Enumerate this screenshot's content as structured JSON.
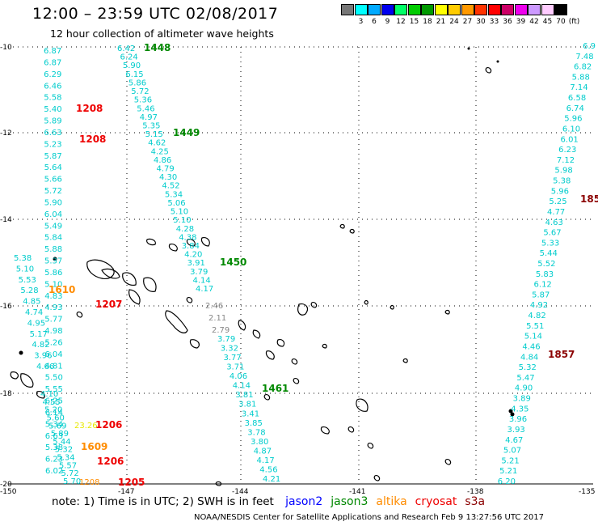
{
  "header": {
    "title": "12:00 – 23:59 UTC 02/08/2017",
    "subtitle": "12 hour collection of altimeter wave heights"
  },
  "colorbar": {
    "unit": "(ft)",
    "items": [
      {
        "label": "",
        "color": "#777777"
      },
      {
        "label": "3",
        "color": "#00ffff"
      },
      {
        "label": "6",
        "color": "#00aaff"
      },
      {
        "label": "9",
        "color": "#0000ee"
      },
      {
        "label": "12",
        "color": "#00ff66"
      },
      {
        "label": "15",
        "color": "#00cc00"
      },
      {
        "label": "18",
        "color": "#009900"
      },
      {
        "label": "21",
        "color": "#ffff00"
      },
      {
        "label": "24",
        "color": "#ffcc00"
      },
      {
        "label": "27",
        "color": "#ff9900"
      },
      {
        "label": "30",
        "color": "#ff3300"
      },
      {
        "label": "33",
        "color": "#ff0000"
      },
      {
        "label": "36",
        "color": "#cc0066"
      },
      {
        "label": "39",
        "color": "#ee00ee"
      },
      {
        "label": "42",
        "color": "#cc99ff"
      },
      {
        "label": "45",
        "color": "#ffccff"
      },
      {
        "label": "70",
        "color": "#000000"
      }
    ]
  },
  "map_axes": {
    "lat_labels": [
      "-10",
      "-12",
      "-14",
      "-16",
      "-18",
      "-20"
    ],
    "lon_labels": [
      "-150",
      "-147",
      "-144",
      "-141",
      "-138",
      "-135"
    ]
  },
  "wave_tracks": [
    {
      "color": "#00cccc",
      "values": [
        "6.87",
        "6.87",
        "6.29",
        "6.46",
        "5.58",
        "5.40",
        "5.89",
        "6.63",
        "5.23",
        "5.87",
        "5.64",
        "5.66",
        "5.72",
        "5.90",
        "6.04",
        "5.49",
        "5.84",
        "5.88",
        "5.37",
        "5.86",
        "5.10",
        "4.83",
        "4.93",
        "5.77",
        "4.98",
        "5.26",
        "6.04",
        "4.81",
        "5.50",
        "5.55",
        "6.25",
        "6.14",
        "5.34",
        "6.63",
        "5.38",
        "6.23",
        "6.02"
      ]
    },
    {
      "color": "#00cccc",
      "values": [
        "6.42",
        "6.24",
        "5.90",
        "6.15",
        "5.86",
        "5.72",
        "5.36",
        "5.46",
        "4.97",
        "5.35",
        "5.15",
        "4.62",
        "4.25",
        "4.86",
        "4.79",
        "4.30",
        "4.52",
        "5.34",
        "5.06",
        "5.10",
        "5.10",
        "4.28",
        "4.38",
        "3.84",
        "4.20",
        "3.91",
        "3.79",
        "4.14",
        "4.17"
      ]
    },
    {
      "color": "#00cccc",
      "values": [
        "3.79",
        "3.32",
        "3.77",
        "3.71",
        "4.06",
        "4.14",
        "3.81",
        "3.81",
        "3.41",
        "3.85",
        "3.78",
        "3.80",
        "4.87",
        "4.17",
        "4.56",
        "4.21"
      ]
    },
    {
      "color": "#00cccc",
      "values": [
        "5.38",
        "5.10",
        "5.53",
        "5.28",
        "4.85",
        "4.74",
        "4.95",
        "5.17",
        "4.82",
        "3.96",
        "4.66"
      ]
    },
    {
      "color": "#00cccc",
      "values": [
        "4.10",
        "4.55",
        "5.20",
        "5.60",
        "5.69",
        "5.89",
        "5.44",
        "5.32",
        "5.34",
        "5.57",
        "5.72",
        "5.70"
      ]
    },
    {
      "color": "#00cccc",
      "values": [
        "6.9",
        "7.48",
        "6.82",
        "5.88",
        "7.14",
        "6.58",
        "6.74",
        "5.96",
        "6.10",
        "6.01",
        "6.23",
        "7.12",
        "5.98",
        "5.38",
        "5.96",
        "5.25",
        "4.77",
        "4.63",
        "5.67",
        "5.33",
        "5.44",
        "5.52",
        "5.83",
        "6.12",
        "5.87",
        "4.92",
        "4.82",
        "5.51",
        "5.14",
        "4.46",
        "4.84",
        "5.32",
        "5.47",
        "4.90",
        "3.89",
        "4.35",
        "3.96",
        "3.93",
        "4.67",
        "5.07",
        "5.21",
        "5.21",
        "6.20"
      ]
    },
    {
      "color": "#888888",
      "values": [
        "2.46",
        "2.11",
        "2.79"
      ]
    },
    {
      "color": "#e8e800",
      "values": [
        "23.26"
      ]
    },
    {
      "color": "#ff8c00",
      "values": [
        "1208"
      ]
    }
  ],
  "pass_times": [
    {
      "text": "1448",
      "color": "#008800"
    },
    {
      "text": "1208",
      "color": "#ee0000"
    },
    {
      "text": "1208",
      "color": "#ee0000"
    },
    {
      "text": "1449",
      "color": "#008800"
    },
    {
      "text": "1450",
      "color": "#008800"
    },
    {
      "text": "1610",
      "color": "#ff8c00"
    },
    {
      "text": "1207",
      "color": "#ee0000"
    },
    {
      "text": "1461",
      "color": "#008800"
    },
    {
      "text": "1206",
      "color": "#ee0000"
    },
    {
      "text": "1609",
      "color": "#ff8c00"
    },
    {
      "text": "1206",
      "color": "#ee0000"
    },
    {
      "text": "1205",
      "color": "#ee0000"
    },
    {
      "text": "185",
      "color": "#8b0000"
    },
    {
      "text": "1857",
      "color": "#8b0000"
    }
  ],
  "footer": {
    "note": "note:  1) Time is in UTC;  2) SWH is in feet",
    "satellites": [
      {
        "name": "jason2",
        "color": "#0000ff"
      },
      {
        "name": "jason3",
        "color": "#008800"
      },
      {
        "name": "altika",
        "color": "#ff8c00"
      },
      {
        "name": "cryosat",
        "color": "#ee0000"
      },
      {
        "name": "s3a",
        "color": "#8b0000"
      }
    ],
    "credit": "NOAA/NESDIS Center for Satellite Applications and Research     Feb  9 13:27:56 UTC 2017"
  }
}
